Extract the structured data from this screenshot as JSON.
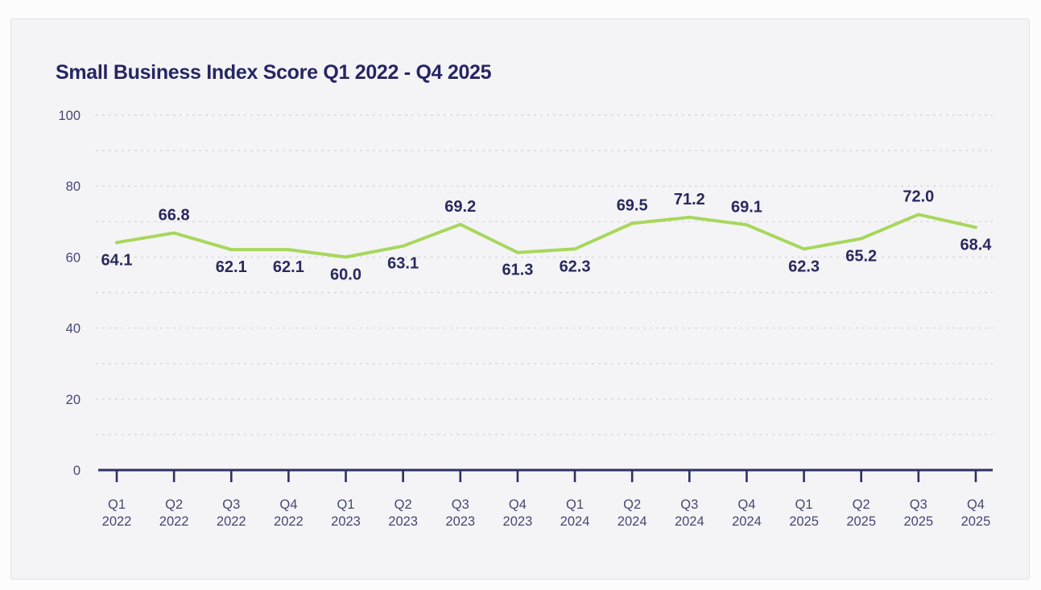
{
  "colors": {
    "page_background": "#fcfcfd",
    "card_background": "#f4f4f6",
    "card_border": "#e1e1e7",
    "title_text": "#262664",
    "data_label_text": "#29295e",
    "tick_label_text": "#474775",
    "axis_line": "#303063",
    "gridline": "#d7d7dd",
    "series_line": "#a8d75c"
  },
  "chart_data": {
    "type": "line",
    "title": "Small Business Index Score Q1 2022 - Q4 2025",
    "categories": [
      "Q1 2022",
      "Q2 2022",
      "Q3 2022",
      "Q4 2022",
      "Q1 2023",
      "Q2 2023",
      "Q3 2023",
      "Q4 2023",
      "Q1 2024",
      "Q2 2024",
      "Q3 2024",
      "Q4 2024",
      "Q1 2025",
      "Q2 2025",
      "Q3 2025",
      "Q4 2025"
    ],
    "values": [
      64.1,
      66.8,
      62.1,
      62.1,
      60.0,
      63.1,
      69.2,
      61.3,
      62.3,
      69.5,
      71.2,
      69.1,
      62.3,
      65.2,
      72.0,
      68.4
    ],
    "value_label_placement": [
      "below",
      "above",
      "below",
      "below",
      "below",
      "below",
      "above",
      "below",
      "below",
      "above",
      "above",
      "above",
      "below",
      "below",
      "above",
      "below"
    ],
    "xlabel": "",
    "ylabel": "",
    "ylim": [
      0,
      100
    ],
    "y_tick_labels": [
      0,
      20,
      40,
      60,
      80,
      100
    ],
    "grid_interval": 10,
    "grid": true,
    "grid_style": "dashed",
    "legend": false
  }
}
